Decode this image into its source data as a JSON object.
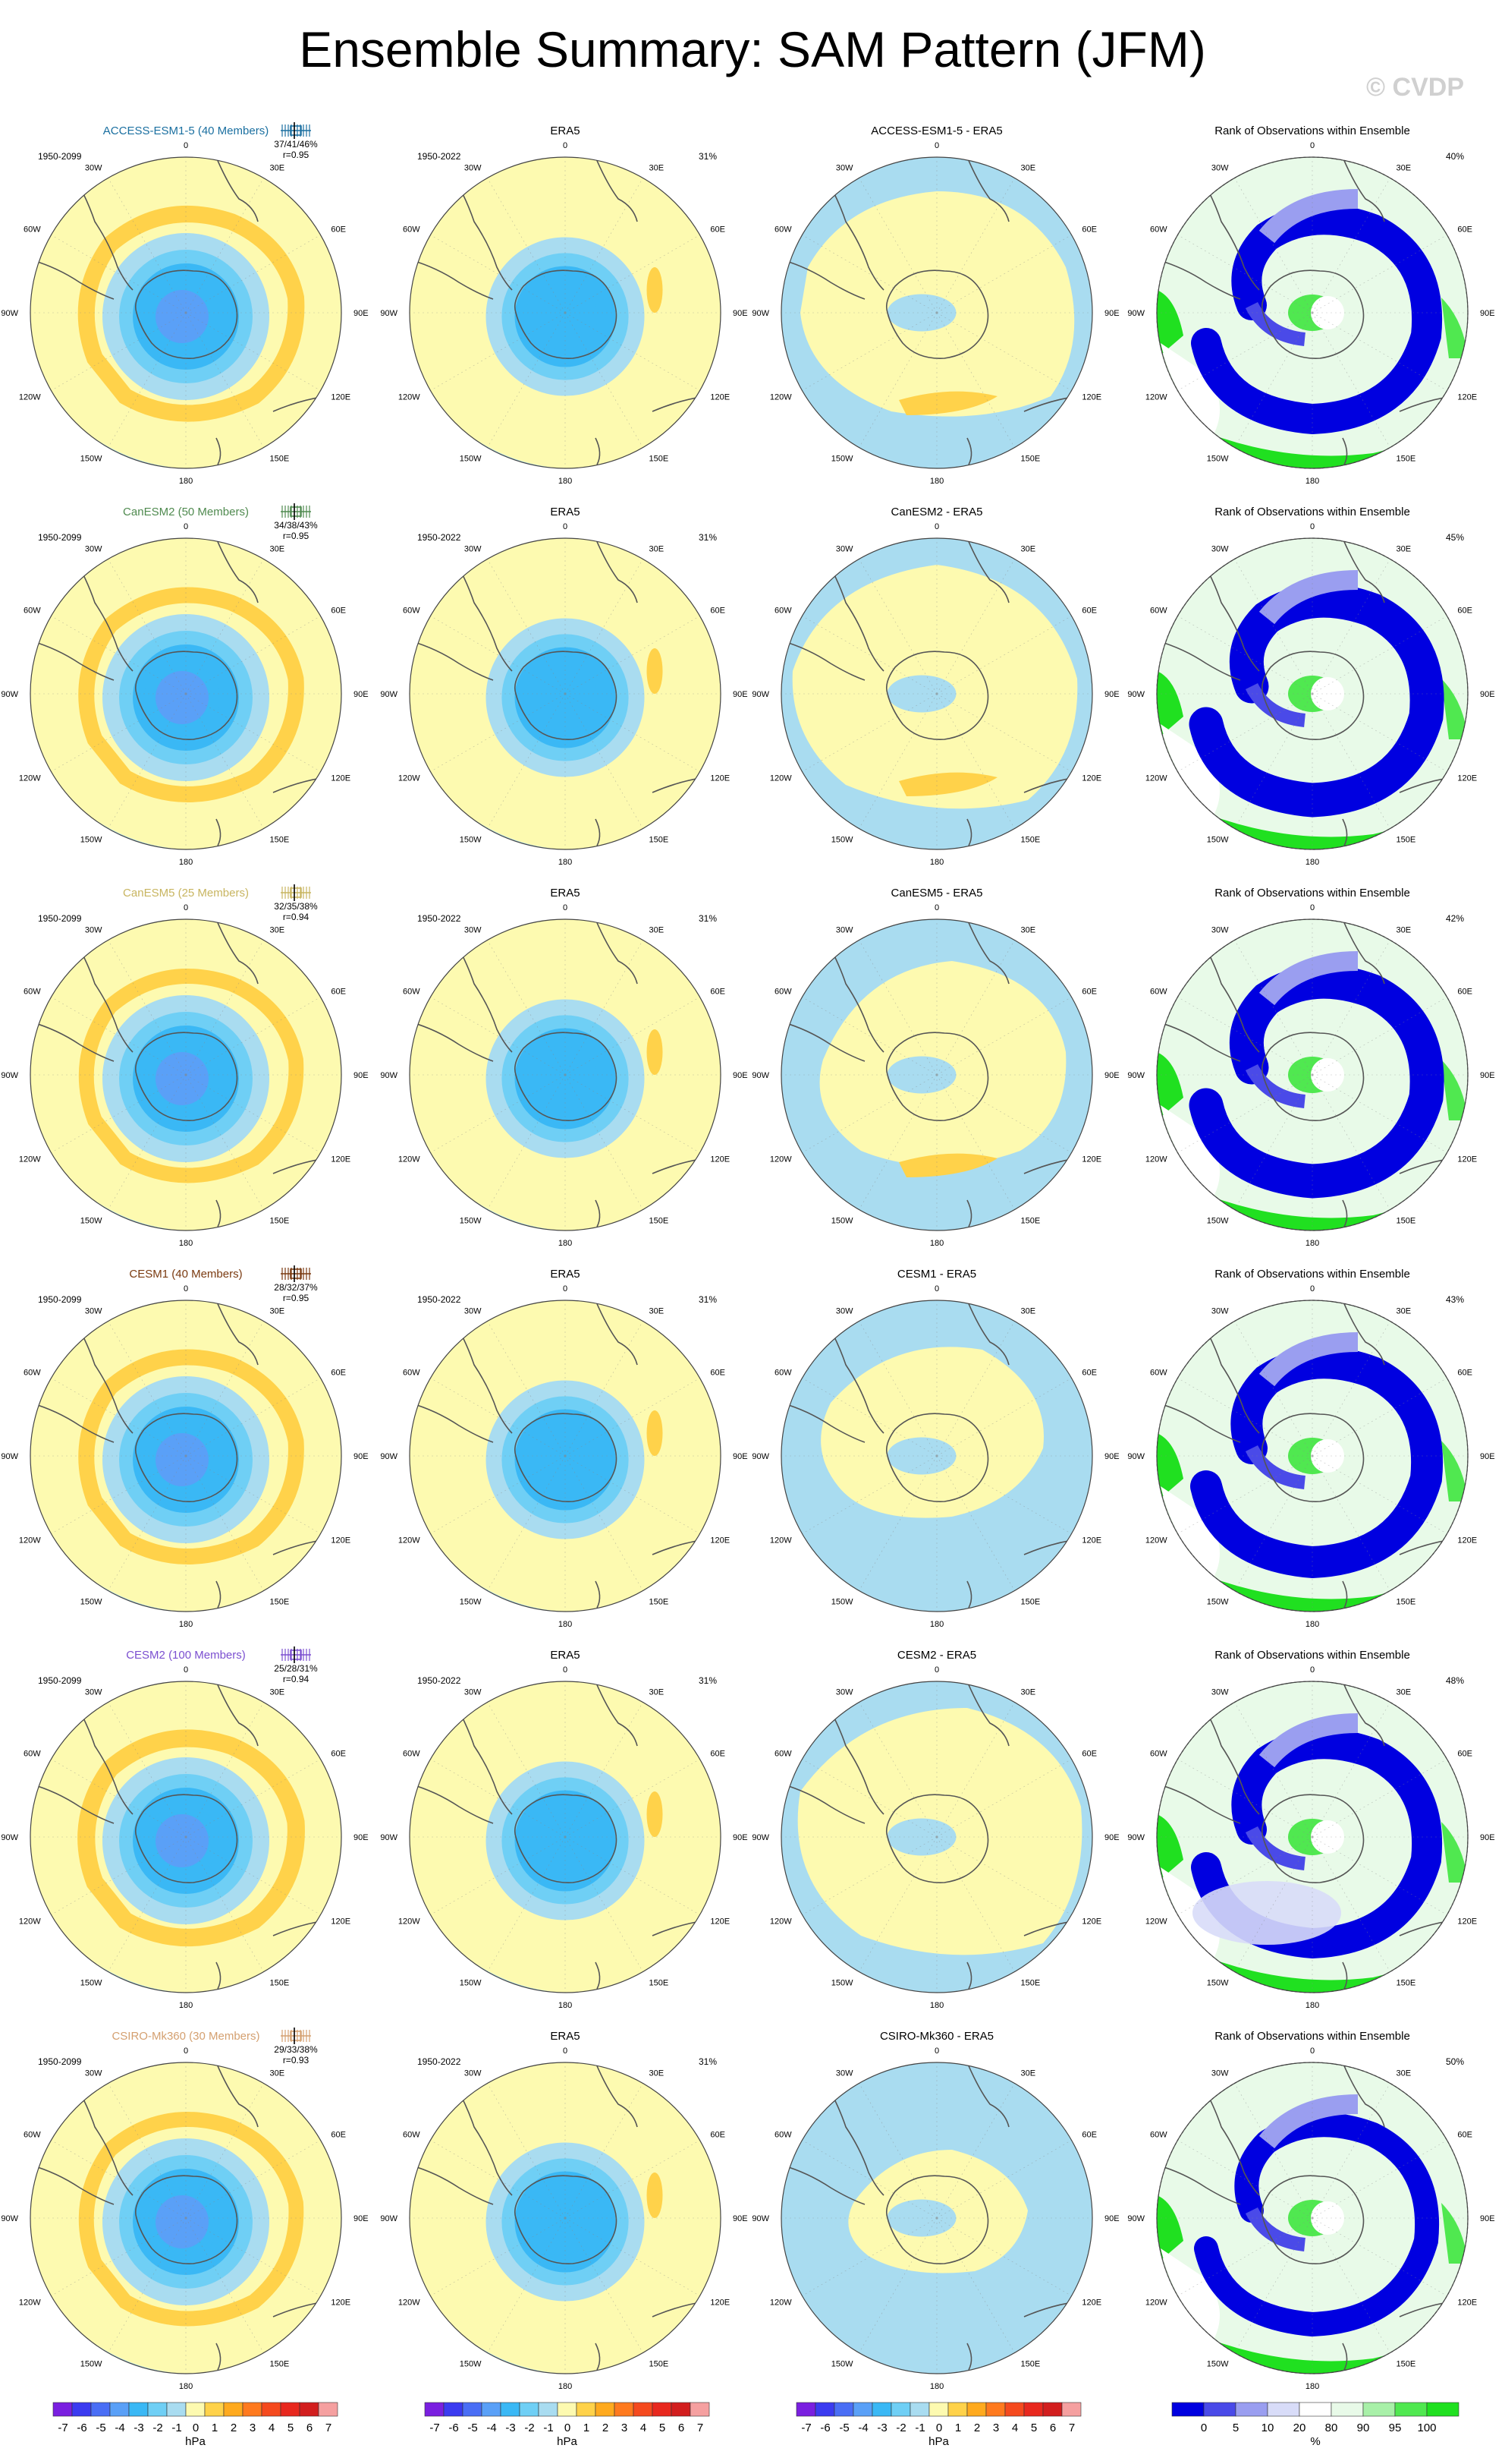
{
  "title": "Ensemble Summary: SAM Pattern (JFM)",
  "watermark": "© CVDP",
  "colors": {
    "title": "#000000",
    "watermark": "#d0d0d0",
    "land": "#555555",
    "rim": "#444444"
  },
  "longitude_labels": {
    "top": "0",
    "upper_right": "30E",
    "right_upper": "60E",
    "right": "90E",
    "right_lower": "120E",
    "lower_right": "150E",
    "bottom": "180",
    "lower_left": "150W",
    "left_lower": "120W",
    "left": "90W",
    "left_upper": "60W",
    "upper_left": "30W"
  },
  "rows": [
    {
      "model": "ACCESS-ESM1-5 (40 Members)",
      "model_color": "#1a6fa0",
      "model_period": "1950-2099",
      "box_text": "37/41/46%",
      "corr_text": "r=0.95",
      "obs_title": "ERA5",
      "obs_period": "1950-2022",
      "obs_pct": "31%",
      "diff_title": "ACCESS-ESM1-5 - ERA5",
      "rank_title": "Rank of Observations within Ensemble",
      "rank_pct": "40%"
    },
    {
      "model": "CanESM2 (50 Members)",
      "model_color": "#4f8a4f",
      "model_period": "1950-2099",
      "box_text": "34/38/43%",
      "corr_text": "r=0.95",
      "obs_title": "ERA5",
      "obs_period": "1950-2022",
      "obs_pct": "31%",
      "diff_title": "CanESM2 - ERA5",
      "rank_title": "Rank of Observations within Ensemble",
      "rank_pct": "45%"
    },
    {
      "model": "CanESM5 (25 Members)",
      "model_color": "#c8b560",
      "model_period": "1950-2099",
      "box_text": "32/35/38%",
      "corr_text": "r=0.94",
      "obs_title": "ERA5",
      "obs_period": "1950-2022",
      "obs_pct": "31%",
      "diff_title": "CanESM5 - ERA5",
      "rank_title": "Rank of Observations within Ensemble",
      "rank_pct": "42%"
    },
    {
      "model": "CESM1 (40 Members)",
      "model_color": "#7a3a10",
      "model_period": "1950-2099",
      "box_text": "28/32/37%",
      "corr_text": "r=0.95",
      "obs_title": "ERA5",
      "obs_period": "1950-2022",
      "obs_pct": "31%",
      "diff_title": "CESM1 - ERA5",
      "rank_title": "Rank of Observations within Ensemble",
      "rank_pct": "43%"
    },
    {
      "model": "CESM2 (100 Members)",
      "model_color": "#7b4fd0",
      "model_period": "1950-2099",
      "box_text": "25/28/31%",
      "corr_text": "r=0.94",
      "obs_title": "ERA5",
      "obs_period": "1950-2022",
      "obs_pct": "31%",
      "diff_title": "CESM2 - ERA5",
      "rank_title": "Rank of Observations within Ensemble",
      "rank_pct": "48%"
    },
    {
      "model": "CSIRO-Mk360 (30 Members)",
      "model_color": "#d4a070",
      "model_period": "1950-2099",
      "box_text": "29/33/38%",
      "corr_text": "r=0.93",
      "obs_title": "ERA5",
      "obs_period": "1950-2022",
      "obs_pct": "31%",
      "diff_title": "CSIRO-Mk360 - ERA5",
      "rank_title": "Rank of Observations within Ensemble",
      "rank_pct": "50%"
    }
  ],
  "colorbars": {
    "hpa": {
      "colors": [
        "#7a1fe0",
        "#3b3bf0",
        "#4a6ef5",
        "#5aa0f7",
        "#3ab8f5",
        "#6fcff5",
        "#a9dcf0",
        "#fdfab0",
        "#ffd24a",
        "#ffaa1e",
        "#ff7a1e",
        "#f54a1e",
        "#e8281e",
        "#d21e1e",
        "#f5a0a0"
      ],
      "labels": [
        "-7",
        "-6",
        "-5",
        "-4",
        "-3",
        "-2",
        "-1",
        "0",
        "1",
        "2",
        "3",
        "4",
        "5",
        "6",
        "7"
      ],
      "unit": "hPa"
    },
    "rank": {
      "colors": [
        "#0000e0",
        "#4a4ae8",
        "#9a9ef0",
        "#d8dcf8",
        "#ffffff",
        "#e8fae8",
        "#a8f0a8",
        "#50e850",
        "#20e020"
      ],
      "labels": [
        "0",
        "5",
        "10",
        "20",
        "80",
        "90",
        "95",
        "100"
      ],
      "unit": "%"
    }
  }
}
